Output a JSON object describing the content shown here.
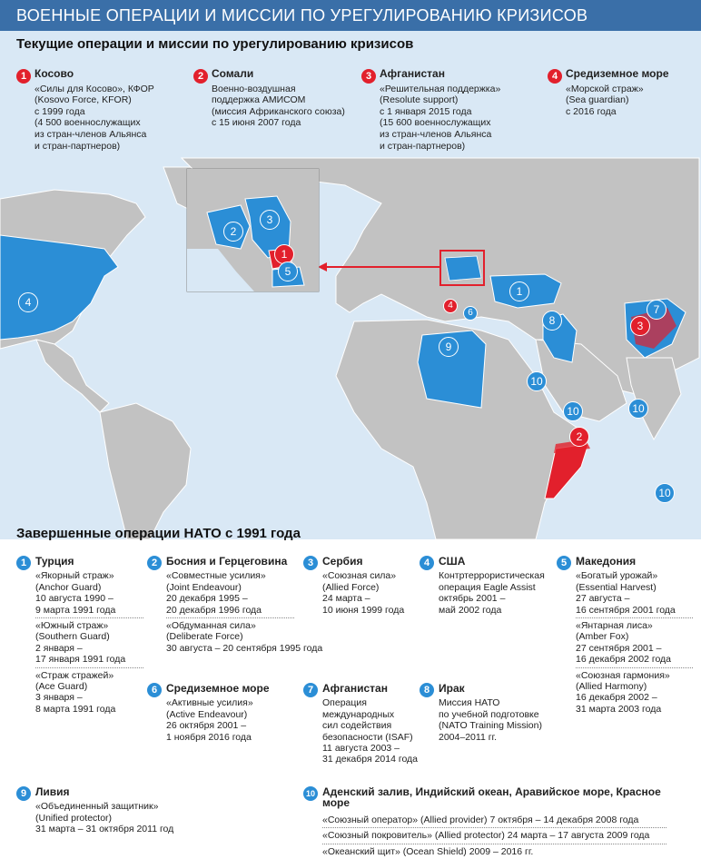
{
  "header": {
    "title": "ВОЕННЫЕ ОПЕРАЦИИ И МИССИИ ПО УРЕГУЛИРОВАНИЮ КРИЗИСОВ"
  },
  "current": {
    "title": "Текущие операции и миссии по урегулированию кризисов",
    "items": [
      {
        "num": "1",
        "title": "Косово",
        "lines": [
          "«Силы для Косово», КФОР",
          "(Kosovo Force, KFOR)",
          "с 1999 года",
          "(4 500 военнослужащих",
          "из стран-членов Альянса",
          "и стран-партнеров)"
        ]
      },
      {
        "num": "2",
        "title": "Сомали",
        "lines": [
          "Военно-воздушная",
          "поддержка АМИСОМ",
          "(миссия Африканского союза)",
          "с 15 июня 2007 года"
        ]
      },
      {
        "num": "3",
        "title": "Афганистан",
        "lines": [
          "«Решительная поддержка»",
          "(Resolute support)",
          "с 1 января 2015 года",
          "(15 600 военнослужащих",
          "из стран-членов Альянса",
          "и стран-партнеров)"
        ]
      },
      {
        "num": "4",
        "title": "Средиземное море",
        "lines": [
          "«Морской страж»",
          "(Sea guardian)",
          "с 2016 года"
        ]
      }
    ]
  },
  "map": {
    "labels": [
      "1",
      "2",
      "3",
      "4",
      "5",
      "6",
      "7",
      "8",
      "9",
      "10",
      "10",
      "10",
      "10",
      "4",
      "2",
      "3"
    ],
    "inset_labels": [
      "1",
      "2",
      "3",
      "5"
    ],
    "colors": {
      "sea": "#d9e8f5",
      "land": "#c2c2c2",
      "highlight": "#2b8ed6",
      "active": "#e2202c"
    }
  },
  "completed": {
    "title": "Завершенные операции НАТО с 1991 года",
    "items": [
      {
        "num": "1",
        "title": "Турция",
        "blocks": [
          [
            "«Якорный страж»",
            "(Anchor Guard)",
            "10 августа 1990 –",
            "9 марта 1991 года"
          ],
          [
            "«Южный страж»",
            "(Southern Guard)",
            "2 января –",
            "17 января 1991 года"
          ],
          [
            "«Страж стражей»",
            "(Ace Guard)",
            "3 января –",
            "8 марта 1991 года"
          ]
        ]
      },
      {
        "num": "2",
        "title": "Босния и Герцеговина",
        "blocks": [
          [
            "«Совместные усилия»",
            "(Joint Endeavour)",
            "20 декабря 1995 –",
            "20 декабря 1996 года"
          ],
          [
            "«Обдуманная сила»",
            "(Deliberate Force)",
            "30 августа – 20 сентября 1995 года"
          ]
        ]
      },
      {
        "num": "3",
        "title": "Сербия",
        "blocks": [
          [
            "«Союзная сила»",
            "(Allied Force)",
            "24 марта –",
            "10 июня 1999 года"
          ]
        ]
      },
      {
        "num": "4",
        "title": "США",
        "blocks": [
          [
            "Контртеррористическая",
            "операция Eagle Assist",
            "октябрь 2001 –",
            "май 2002 года"
          ]
        ]
      },
      {
        "num": "5",
        "title": "Македония",
        "blocks": [
          [
            "«Богатый урожай»",
            "(Essential Harvest)",
            "27 августа –",
            "16 сентября 2001 года"
          ],
          [
            "«Янтарная лиса»",
            "(Amber Fox)",
            "27 сентября 2001 –",
            "16 декабря 2002 года"
          ],
          [
            "«Союзная гармония»",
            "(Allied Harmony)",
            "16 декабря 2002 –",
            "31 марта 2003 года"
          ]
        ]
      },
      {
        "num": "6",
        "title": "Средиземное море",
        "blocks": [
          [
            "«Активные усилия»",
            "(Active Endeavour)",
            "26 октября 2001 –",
            "1 ноября 2016 года"
          ]
        ]
      },
      {
        "num": "7",
        "title": "Афганистан",
        "blocks": [
          [
            "Операция",
            "международных",
            "сил содействия",
            "безопасности (ISAF)",
            "11 августа 2003 –",
            "31 декабря 2014 года"
          ]
        ]
      },
      {
        "num": "8",
        "title": "Ирак",
        "blocks": [
          [
            "Миссия НАТО",
            "по учебной подготовке",
            "(NATO Training Mission)",
            "2004–2011 гг."
          ]
        ]
      },
      {
        "num": "9",
        "title": "Ливия",
        "blocks": [
          [
            "«Объединенный защитник»",
            "(Unified protector)",
            "31 марта – 31 октября 2011 год"
          ]
        ]
      },
      {
        "num": "10",
        "title": "Аденский залив, Индийский океан, Аравийское море, Красное море",
        "blocks": [
          [
            "«Союзный оператор» (Allied provider) 7 октября – 14 декабря 2008 года",
            "«Союзный покровитель» (Allied protector) 24 марта – 17 августа 2009 года",
            "«Океанский щит» (Ocean Shield) 2009 – 2016 гг."
          ]
        ]
      }
    ]
  }
}
